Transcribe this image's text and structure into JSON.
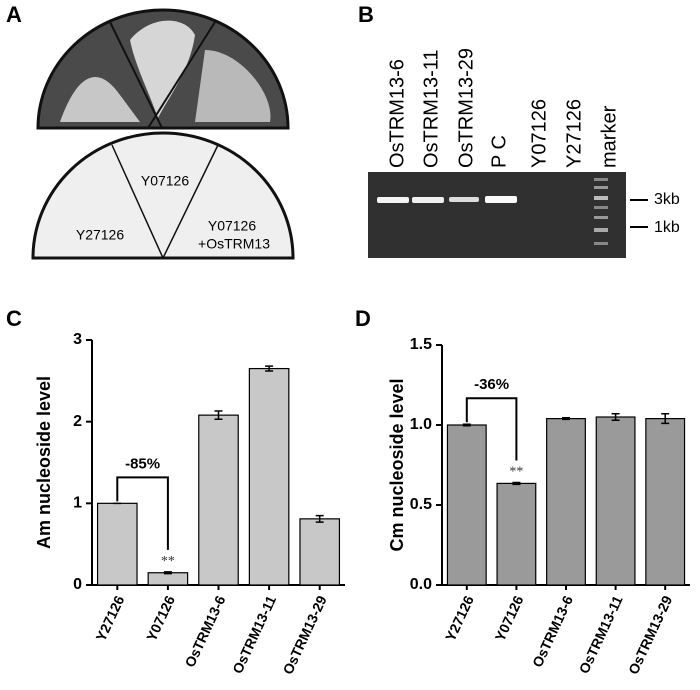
{
  "panel_labels": [
    "A",
    "B",
    "C",
    "D"
  ],
  "plate": {
    "sectors": [
      "Y07126",
      "Y27126"
    ],
    "complemented": [
      "Y07126",
      "+OsTRM13"
    ]
  },
  "gel": {
    "lanes": [
      "OsTRM13-6",
      "OsTRM13-11",
      "OsTRM13-29",
      "P C",
      "Y07126",
      "Y27126",
      "marker"
    ],
    "markers": [
      "3kb",
      "1kb"
    ]
  },
  "chart_data": [
    {
      "type": "bar",
      "ylabel": "Am nucleoside level",
      "color": "#c8c8c8",
      "categories": [
        "Y27126",
        "Y07126",
        "OsTRM13-6",
        "OsTRM13-11",
        "OsTRM13-29"
      ],
      "values": [
        1,
        0.15,
        2.08,
        2.65,
        0.81
      ],
      "errors": [
        0,
        0.01,
        0.05,
        0.03,
        0.04
      ],
      "ylim": [
        0,
        3
      ],
      "yticks": [
        0,
        1,
        2,
        3
      ],
      "annotations": {
        "change": "-85%",
        "significance": "**"
      }
    },
    {
      "type": "bar",
      "ylabel": "Cm nucleoside level",
      "color": "#9a9a9a",
      "categories": [
        "Y27126",
        "Y07126",
        "OsTRM13-6",
        "OsTRM13-11",
        "OsTRM13-29"
      ],
      "values": [
        1.0,
        0.635,
        1.04,
        1.05,
        1.04
      ],
      "errors": [
        0.005,
        0.006,
        0.005,
        0.02,
        0.03
      ],
      "ylim": [
        0,
        1.5
      ],
      "yticks": [
        {
          "value": 0,
          "label": "0.0"
        },
        {
          "value": 0.5,
          "label": "0.5"
        },
        {
          "value": 1,
          "label": "1.0"
        },
        {
          "value": 1.5,
          "label": "1.5"
        }
      ],
      "annotations": {
        "change": "-36%",
        "significance": "**"
      }
    }
  ]
}
